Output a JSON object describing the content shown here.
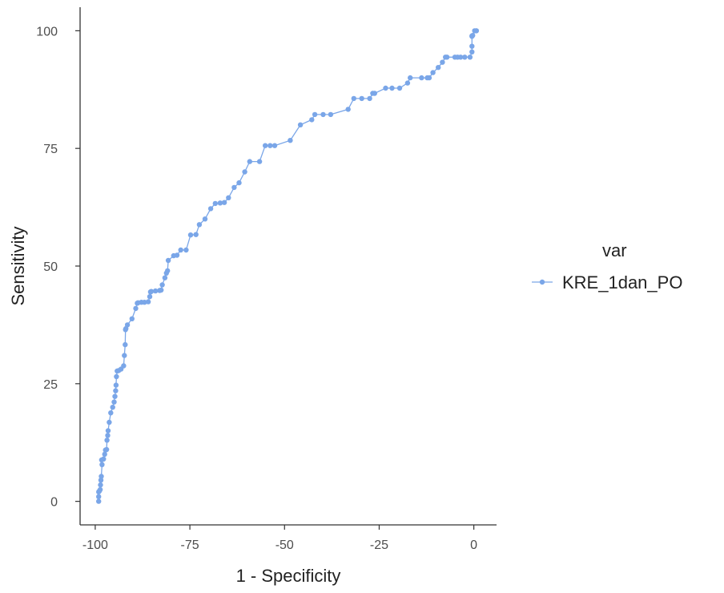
{
  "chart_data": {
    "type": "line",
    "xlabel": "1 - Specificity",
    "ylabel": "Sensitivity",
    "xlim": [
      -104,
      6
    ],
    "ylim": [
      -5,
      105
    ],
    "x_ticks": [
      -100,
      -75,
      -50,
      -25,
      0
    ],
    "x_tick_labels": [
      "-100",
      "-75",
      "-50",
      "-25",
      "0"
    ],
    "y_ticks": [
      0,
      25,
      50,
      75,
      100
    ],
    "y_tick_labels": [
      "0",
      "25",
      "50",
      "75",
      "100"
    ],
    "grid": false,
    "legend": {
      "title": "var",
      "placement": "right"
    },
    "color": "#7aa6e8",
    "series": [
      {
        "name": "KRE_1dan_PO",
        "x": [
          -99.1,
          -99.1,
          -99.1,
          -98.9,
          -98.7,
          -98.6,
          -98.5,
          -98.4,
          -98.2,
          -98.3,
          -97.8,
          -97.5,
          -97.3,
          -97.0,
          -96.9,
          -96.7,
          -96.6,
          -96.3,
          -95.9,
          -95.4,
          -95.0,
          -94.8,
          -94.6,
          -94.5,
          -94.4,
          -94.2,
          -93.8,
          -93.2,
          -92.5,
          -92.3,
          -92.1,
          -92.0,
          -91.9,
          -91.5,
          -90.3,
          -89.3,
          -88.9,
          -88.7,
          -87.8,
          -87.0,
          -86.0,
          -85.6,
          -85.4,
          -85.2,
          -84.1,
          -83.0,
          -82.6,
          -82.3,
          -81.6,
          -81.2,
          -80.9,
          -80.7,
          -79.3,
          -78.4,
          -77.4,
          -76.0,
          -74.8,
          -73.4,
          -72.5,
          -71.0,
          -69.5,
          -68.3,
          -67.0,
          -65.9,
          -64.8,
          -63.3,
          -62.0,
          -60.5,
          -59.2,
          -56.6,
          -55.1,
          -53.8,
          -52.6,
          -48.5,
          -45.8,
          -42.8,
          -42.0,
          -39.8,
          -37.8,
          -33.2,
          -31.7,
          -29.6,
          -27.5,
          -26.7,
          -26.2,
          -23.3,
          -21.6,
          -19.6,
          -17.5,
          -16.8,
          -13.8,
          -12.3,
          -11.8,
          -10.8,
          -9.4,
          -8.3,
          -7.5,
          -7.1,
          -5.0,
          -4.3,
          -3.5,
          -2.4,
          -1.0,
          -0.5,
          -0.5,
          -0.5,
          -0.5,
          -0.3,
          0.2,
          0.6,
          0.7
        ],
        "y": [
          0,
          1.0,
          2.0,
          2.2,
          2.5,
          3.5,
          4.5,
          5.3,
          7.8,
          8.8,
          9.0,
          10.0,
          10.9,
          11.0,
          13.0,
          14.0,
          15.0,
          16.8,
          18.8,
          20.0,
          21.1,
          22.3,
          23.5,
          24.7,
          26.5,
          27.7,
          27.8,
          28.1,
          28.8,
          31.0,
          33.3,
          36.5,
          36.7,
          37.5,
          38.8,
          41.0,
          42.1,
          42.2,
          42.3,
          42.3,
          42.4,
          43.5,
          44.5,
          44.6,
          44.7,
          44.8,
          44.9,
          46.0,
          47.5,
          48.5,
          49.0,
          51.2,
          52.2,
          52.3,
          53.4,
          53.4,
          56.6,
          56.7,
          58.8,
          60.0,
          62.2,
          63.3,
          63.4,
          63.5,
          64.5,
          66.7,
          67.7,
          70.0,
          72.2,
          72.2,
          75.6,
          75.6,
          75.6,
          76.7,
          80.0,
          81.1,
          82.2,
          82.2,
          82.2,
          83.3,
          85.6,
          85.6,
          85.6,
          86.7,
          86.7,
          87.8,
          87.8,
          87.8,
          88.9,
          90.0,
          90.0,
          90.0,
          90.0,
          91.1,
          92.2,
          93.3,
          94.4,
          94.4,
          94.4,
          94.4,
          94.4,
          94.4,
          94.4,
          95.5,
          96.7,
          98.8,
          98.9,
          99.0,
          100.0,
          100.0,
          100.0
        ]
      }
    ]
  }
}
